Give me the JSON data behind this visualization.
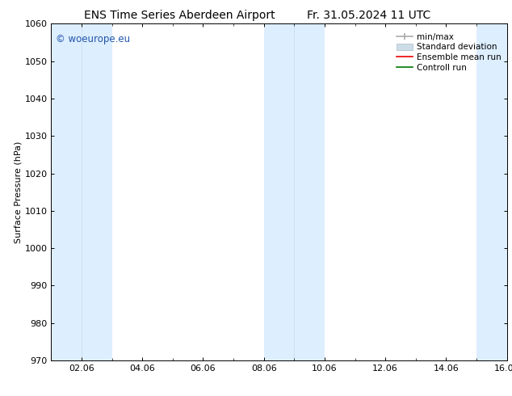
{
  "title_left": "ENS Time Series Aberdeen Airport",
  "title_right": "Fr. 31.05.2024 11 UTC",
  "ylabel": "Surface Pressure (hPa)",
  "ylim": [
    970,
    1060
  ],
  "yticks": [
    970,
    980,
    990,
    1000,
    1010,
    1020,
    1030,
    1040,
    1050,
    1060
  ],
  "xtick_positions": [
    1,
    3,
    5,
    7,
    9,
    11,
    13,
    15
  ],
  "xtick_labels": [
    "02.06",
    "04.06",
    "06.06",
    "08.06",
    "10.06",
    "12.06",
    "14.06",
    "16.06"
  ],
  "watermark": "© woeurope.eu",
  "watermark_color": "#2255aa",
  "bg_color": "#ffffff",
  "plot_bg_color": "#ffffff",
  "shaded_band_color": "#ddeeff",
  "shaded_ranges": [
    [
      0,
      1
    ],
    [
      1,
      2
    ],
    [
      7,
      8
    ],
    [
      8,
      9
    ],
    [
      14,
      15
    ]
  ],
  "shaded_separators": [
    1,
    8
  ],
  "legend_items": [
    {
      "label": "min/max",
      "color": "#999999",
      "lw": 1.2,
      "style": "minmax"
    },
    {
      "label": "Standard deviation",
      "color": "#ccdde8",
      "lw": 6,
      "style": "bar"
    },
    {
      "label": "Ensemble mean run",
      "color": "#ee0000",
      "lw": 1.2,
      "style": "line"
    },
    {
      "label": "Controll run",
      "color": "#007700",
      "lw": 1.2,
      "style": "line"
    }
  ],
  "title_fontsize": 10,
  "tick_fontsize": 8,
  "ylabel_fontsize": 8,
  "legend_fontsize": 7.5
}
